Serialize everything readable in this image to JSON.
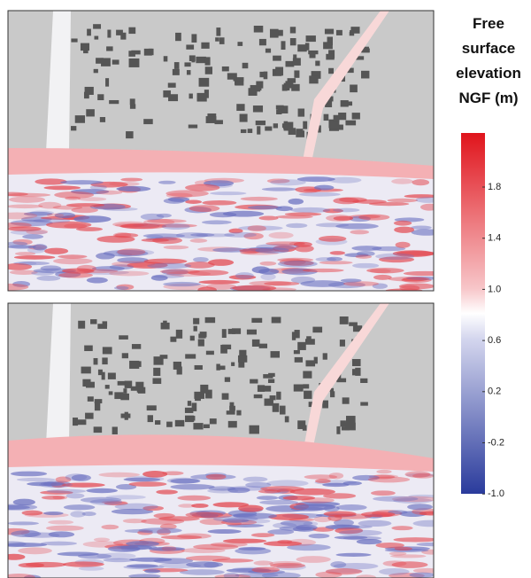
{
  "colorbar": {
    "title_lines": [
      "Free",
      "surface",
      "elevation",
      "NGF (m)"
    ],
    "ticks": [
      1.8,
      1.4,
      {
        "value": 1,
        "label": "1.0"
      },
      0.6,
      0.2,
      -0.2,
      {
        "value": -1,
        "label": "-1.0"
      }
    ]
  }
}
